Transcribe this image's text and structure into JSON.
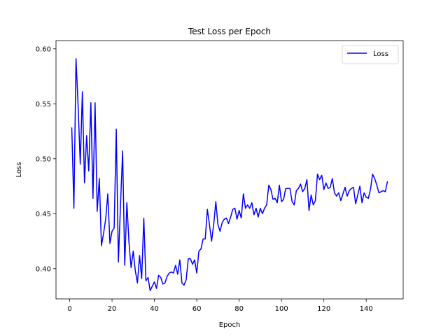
{
  "chart_data": {
    "type": "line",
    "title": "Test Loss per Epoch",
    "xlabel": "Epoch",
    "ylabel": "Loss",
    "xlim": [
      -6.45,
      157.45
    ],
    "ylim": [
      0.3725,
      0.6075
    ],
    "xticks": [
      0,
      20,
      40,
      60,
      80,
      100,
      120,
      140
    ],
    "yticks": [
      0.4,
      0.45,
      0.5,
      0.55,
      0.6
    ],
    "xtick_labels": [
      "0",
      "20",
      "40",
      "60",
      "80",
      "100",
      "120",
      "140"
    ],
    "ytick_labels": [
      "0.40",
      "0.45",
      "0.50",
      "0.55",
      "0.60"
    ],
    "grid": false,
    "legend": {
      "position": "top-right"
    },
    "series": [
      {
        "name": "Loss",
        "color": "#0000ff",
        "x": [
          1,
          2,
          3,
          4,
          5,
          6,
          7,
          8,
          9,
          10,
          11,
          12,
          13,
          14,
          15,
          16,
          17,
          18,
          19,
          20,
          21,
          22,
          23,
          24,
          25,
          26,
          27,
          28,
          29,
          30,
          31,
          32,
          33,
          34,
          35,
          36,
          37,
          38,
          39,
          40,
          41,
          42,
          43,
          44,
          45,
          46,
          47,
          48,
          49,
          50,
          51,
          52,
          53,
          54,
          55,
          56,
          57,
          58,
          59,
          60,
          61,
          62,
          63,
          64,
          65,
          66,
          67,
          68,
          69,
          70,
          71,
          72,
          73,
          74,
          75,
          76,
          77,
          78,
          79,
          80,
          81,
          82,
          83,
          84,
          85,
          86,
          87,
          88,
          89,
          90,
          91,
          92,
          93,
          94,
          95,
          96,
          97,
          98,
          99,
          100,
          101,
          102,
          103,
          104,
          105,
          106,
          107,
          108,
          109,
          110,
          111,
          112,
          113,
          114,
          115,
          116,
          117,
          118,
          119,
          120,
          121,
          122,
          123,
          124,
          125,
          126,
          127,
          128,
          129,
          130,
          131,
          132,
          133,
          134,
          135,
          136,
          137,
          138,
          139,
          140,
          141,
          142,
          143,
          144,
          145,
          146,
          147,
          148,
          149,
          150
        ],
        "values": [
          0.528,
          0.455,
          0.591,
          0.548,
          0.495,
          0.561,
          0.478,
          0.521,
          0.489,
          0.551,
          0.464,
          0.551,
          0.452,
          0.482,
          0.421,
          0.432,
          0.445,
          0.468,
          0.423,
          0.434,
          0.437,
          0.527,
          0.406,
          0.458,
          0.507,
          0.403,
          0.46,
          0.424,
          0.401,
          0.416,
          0.398,
          0.387,
          0.412,
          0.391,
          0.446,
          0.389,
          0.392,
          0.38,
          0.384,
          0.388,
          0.382,
          0.394,
          0.392,
          0.386,
          0.387,
          0.393,
          0.396,
          0.397,
          0.396,
          0.403,
          0.395,
          0.408,
          0.387,
          0.385,
          0.39,
          0.409,
          0.409,
          0.404,
          0.408,
          0.396,
          0.416,
          0.418,
          0.427,
          0.427,
          0.454,
          0.44,
          0.425,
          0.44,
          0.461,
          0.44,
          0.434,
          0.442,
          0.445,
          0.446,
          0.441,
          0.447,
          0.454,
          0.455,
          0.445,
          0.453,
          0.446,
          0.468,
          0.455,
          0.458,
          0.455,
          0.46,
          0.449,
          0.455,
          0.447,
          0.455,
          0.45,
          0.455,
          0.458,
          0.476,
          0.472,
          0.463,
          0.464,
          0.46,
          0.476,
          0.461,
          0.463,
          0.473,
          0.473,
          0.473,
          0.461,
          0.458,
          0.471,
          0.473,
          0.477,
          0.47,
          0.473,
          0.481,
          0.453,
          0.467,
          0.458,
          0.462,
          0.486,
          0.481,
          0.485,
          0.472,
          0.478,
          0.473,
          0.474,
          0.482,
          0.469,
          0.466,
          0.469,
          0.462,
          0.468,
          0.474,
          0.466,
          0.471,
          0.473,
          0.474,
          0.459,
          0.467,
          0.475,
          0.46,
          0.469,
          0.465,
          0.464,
          0.472,
          0.486,
          0.482,
          0.476,
          0.469,
          0.47,
          0.471,
          0.47,
          0.479
        ]
      }
    ]
  }
}
